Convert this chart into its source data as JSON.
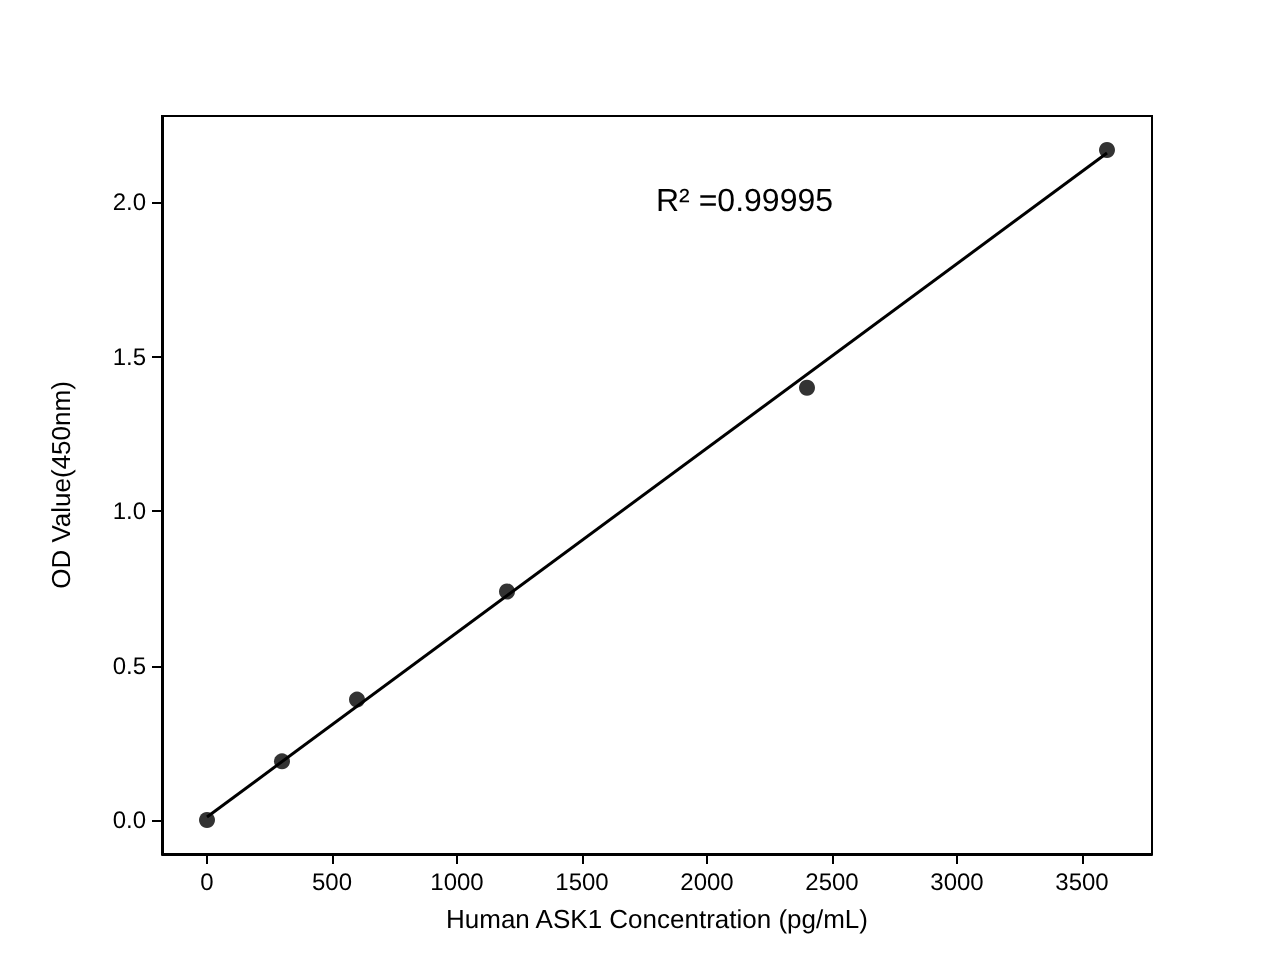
{
  "chart_data": {
    "type": "scatter",
    "xlabel": "Human ASK1 Concentration (pg/mL)",
    "ylabel": "OD Value(450nm)",
    "series": [
      {
        "color": "#000000",
        "marker": "circle",
        "x": [
          0,
          300,
          600,
          1200,
          2400,
          3600
        ],
        "values": [
          0.0,
          0.19,
          0.39,
          0.74,
          1.4,
          2.17
        ]
      },
      {
        "type": "line",
        "color": "#000000",
        "marker": "none",
        "line_style": "solid",
        "x": [
          0,
          3600
        ],
        "values": [
          0.01,
          2.16
        ]
      }
    ],
    "xlim": [
      -180,
      3780
    ],
    "xticks": [
      0,
      500,
      1000,
      1500,
      2000,
      2500,
      3000,
      3500
    ],
    "ylim": [
      -0.11,
      2.28
    ],
    "yticks": [
      {
        "value": 0,
        "label": "0.0"
      },
      0.5,
      {
        "value": 1,
        "label": "1.0"
      },
      1.5,
      {
        "value": 2,
        "label": "2.0"
      }
    ],
    "annotations": [
      "R² =0.99995"
    ],
    "grid": false
  }
}
